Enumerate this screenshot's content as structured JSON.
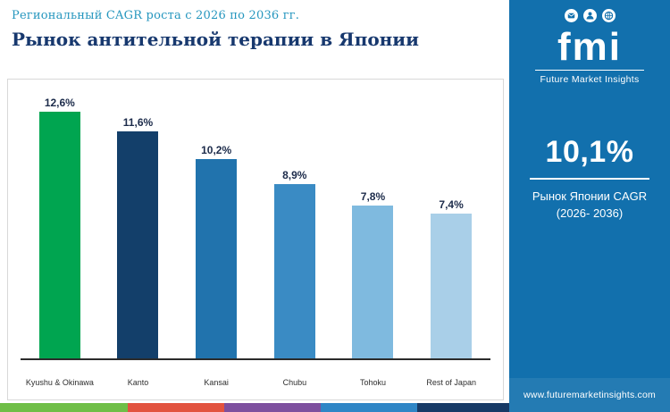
{
  "header": {
    "subtitle": "Региональный CAGR роста с 2026 по 2036 гг.",
    "title": "Рынок антительной терапии в Японии"
  },
  "sidebar": {
    "logo_text": "fmi",
    "logo_subtext": "Future Market Insights",
    "stat_value": "10,1%",
    "stat_label_line1": "Рынок Японии CAGR",
    "stat_label_line2": "(2026- 2036)",
    "website": "www.futuremarketinsights.com",
    "bg_color": "#1270ad"
  },
  "chart_data": {
    "type": "bar",
    "title": "Рынок антительной терапии в Японии",
    "subtitle": "Региональный CAGR роста с 2026 по 2036 гг.",
    "categories": [
      "Kyushu & Okinawa",
      "Kanto",
      "Kansai",
      "Chubu",
      "Tohoku",
      "Rest of Japan"
    ],
    "values": [
      12.6,
      11.6,
      10.2,
      8.9,
      7.8,
      7.4
    ],
    "value_labels": [
      "12,6%",
      "11,6%",
      "10,2%",
      "8,9%",
      "7,8%",
      "7,4%"
    ],
    "bar_colors": [
      "#00a550",
      "#133f6a",
      "#2173ad",
      "#3a8bc4",
      "#7fbadf",
      "#a9cfe8"
    ],
    "xlabel": "",
    "ylabel": "",
    "ylim": [
      0,
      13
    ],
    "grid": false,
    "legend": "none",
    "value_suffix": "%"
  },
  "footer_strip": {
    "segments": [
      {
        "color": "#6fbe47",
        "width": "25%"
      },
      {
        "color": "#e2533f",
        "width": "19%"
      },
      {
        "color": "#7d4f9e",
        "width": "19%"
      },
      {
        "color": "#2f86c6",
        "width": "19%"
      },
      {
        "color": "#173a66",
        "width": "18%"
      }
    ]
  }
}
